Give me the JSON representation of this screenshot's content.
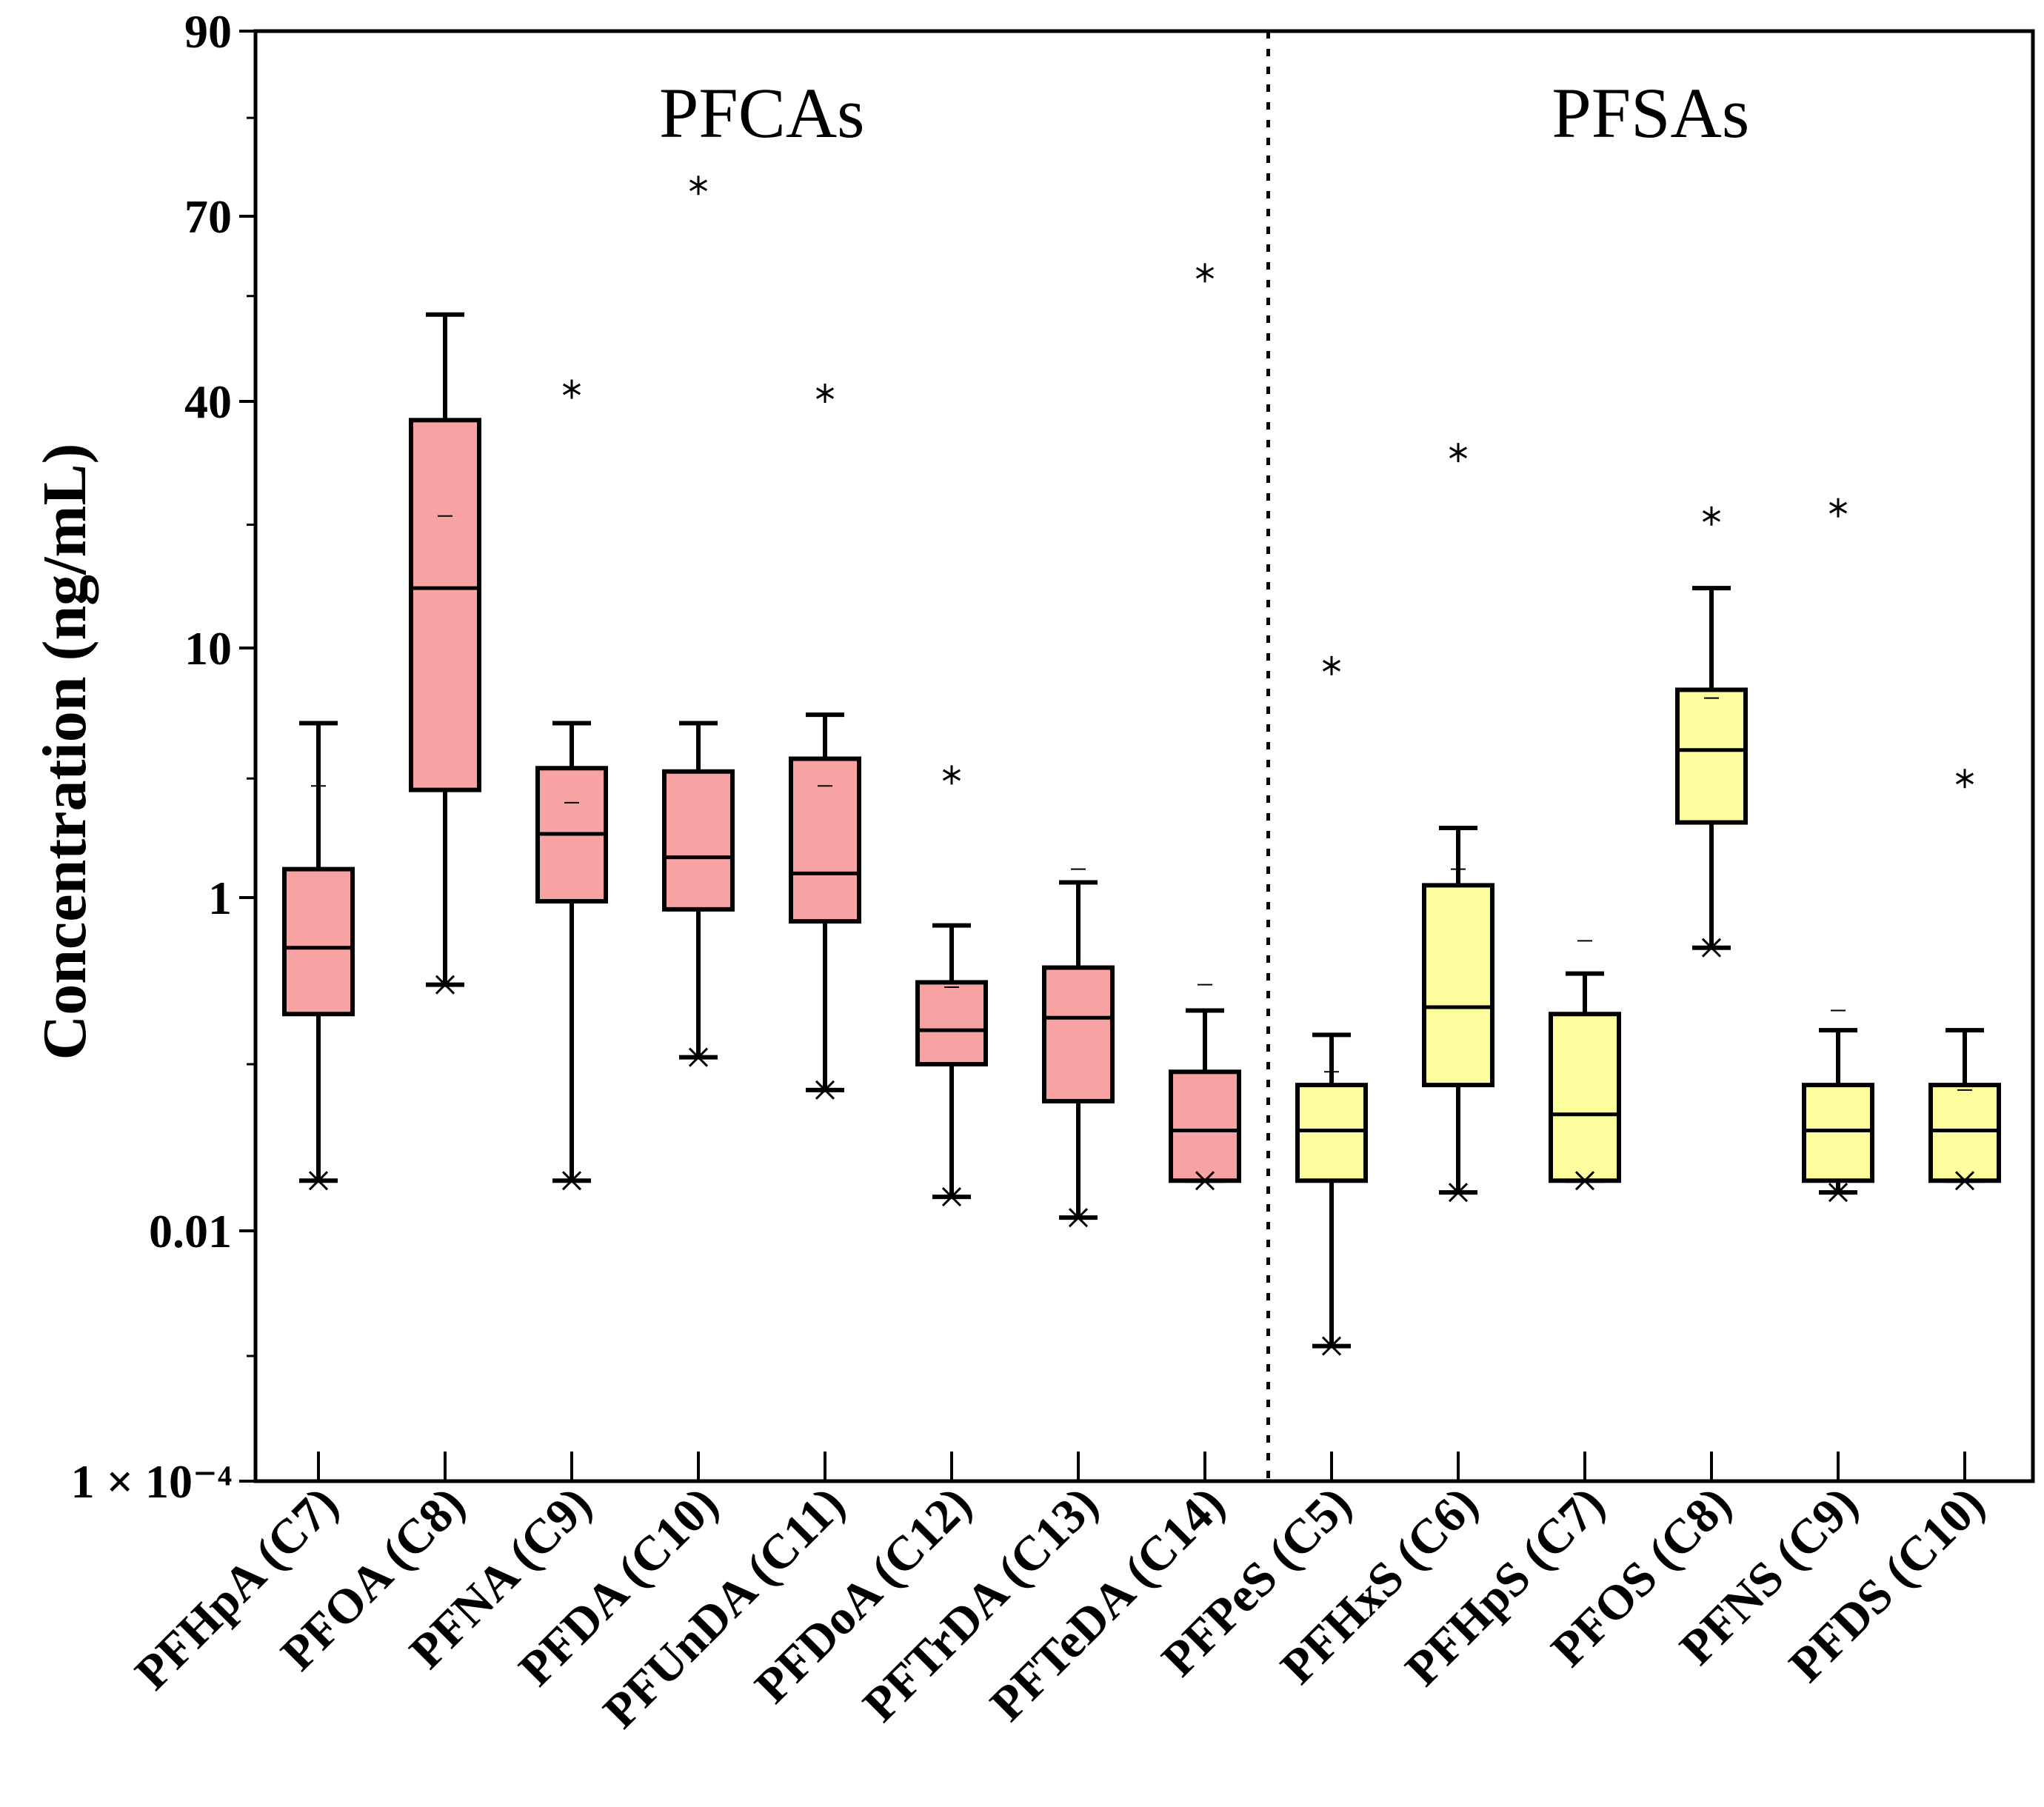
{
  "chart_data": {
    "type": "box",
    "title": "",
    "xlabel": "",
    "ylabel": "Concentration (ng/mL)",
    "yscale": "log",
    "ylim": [
      0.0001,
      90
    ],
    "yticks": [
      {
        "value": 0.0001,
        "label": "1 × 10⁻⁴"
      },
      {
        "value": 0.01,
        "label": "0.01"
      },
      {
        "value": 1,
        "label": "1"
      },
      {
        "value": 10,
        "label": "10"
      },
      {
        "value": 40,
        "label": "40"
      },
      {
        "value": 70,
        "label": "70"
      },
      {
        "value": 90,
        "label": "90"
      }
    ],
    "groups": [
      {
        "label": "PFCAs",
        "color": "#f8a3a3"
      },
      {
        "label": "PFSAs",
        "color": "#fdfd9e"
      }
    ],
    "categories": [
      {
        "label": "PFHpA (C7)",
        "group": 0,
        "whisker_low": 0.02,
        "q1": 0.2,
        "median": 0.5,
        "q3": 1.3,
        "whisker_high": 5.0,
        "mean": 2.8,
        "min_marker": 0.02,
        "max_marker": null,
        "outliers": []
      },
      {
        "label": "PFOA (C8)",
        "group": 0,
        "whisker_low": 0.3,
        "q1": 2.7,
        "median": 14,
        "q3": 36,
        "whisker_high": 52,
        "mean": 21,
        "min_marker": 0.3,
        "max_marker": null,
        "outliers": []
      },
      {
        "label": "PFNA (C9)",
        "group": 0,
        "whisker_low": 0.02,
        "q1": 0.95,
        "median": 1.8,
        "q3": 3.3,
        "whisker_high": 5.0,
        "mean": 2.4,
        "min_marker": 0.02,
        "max_marker": null,
        "outliers": [
          41.5
        ]
      },
      {
        "label": "PFDA (C10)",
        "group": 0,
        "whisker_low": 0.11,
        "q1": 0.85,
        "median": 1.45,
        "q3": 3.2,
        "whisker_high": 5.0,
        "mean": null,
        "min_marker": 0.11,
        "max_marker": null,
        "outliers": [
          73
        ]
      },
      {
        "label": "PFUnDA (C11)",
        "group": 0,
        "whisker_low": 0.07,
        "q1": 0.72,
        "median": 1.25,
        "q3": 3.6,
        "whisker_high": 5.4,
        "mean": 2.8,
        "min_marker": 0.07,
        "max_marker": null,
        "outliers": [
          41
        ]
      },
      {
        "label": "PFDoA (C12)",
        "group": 0,
        "whisker_low": 0.016,
        "q1": 0.1,
        "median": 0.16,
        "q3": 0.31,
        "whisker_high": 0.68,
        "mean": 0.29,
        "min_marker": 0.016,
        "max_marker": null,
        "outliers": [
          3.1
        ]
      },
      {
        "label": "PFTrDA (C13)",
        "group": 0,
        "whisker_low": 0.012,
        "q1": 0.06,
        "median": 0.19,
        "q3": 0.38,
        "whisker_high": 1.15,
        "mean": 1.3,
        "min_marker": 0.012,
        "max_marker": null,
        "outliers": []
      },
      {
        "label": "PFTeDA (C14)",
        "group": 0,
        "whisker_low": 0.02,
        "q1": 0.02,
        "median": 0.04,
        "q3": 0.09,
        "whisker_high": 0.21,
        "mean": 0.3,
        "min_marker": 0.02,
        "max_marker": null,
        "outliers": [
          59
        ]
      },
      {
        "label": "PFPeS (C5)",
        "group": 1,
        "whisker_low": 0.0012,
        "q1": 0.02,
        "median": 0.04,
        "q3": 0.075,
        "whisker_high": 0.15,
        "mean": 0.09,
        "min_marker": 0.0012,
        "max_marker": null,
        "outliers": [
          8.5
        ]
      },
      {
        "label": "PFHxS (C6)",
        "group": 1,
        "whisker_low": 0.017,
        "q1": 0.075,
        "median": 0.22,
        "q3": 1.12,
        "whisker_high": 1.9,
        "mean": 1.3,
        "min_marker": 0.017,
        "max_marker": null,
        "outliers": [
          30
        ]
      },
      {
        "label": "PFHpS (C7)",
        "group": 1,
        "whisker_low": 0.02,
        "q1": 0.02,
        "median": 0.05,
        "q3": 0.2,
        "whisker_high": 0.35,
        "mean": 0.55,
        "min_marker": 0.02,
        "max_marker": null,
        "outliers": []
      },
      {
        "label": "PFOS (C8)",
        "group": 1,
        "whisker_low": 0.5,
        "q1": 2.0,
        "median": 3.9,
        "q3": 6.8,
        "whisker_high": 14,
        "mean": 6.3,
        "min_marker": 0.5,
        "max_marker": null,
        "outliers": [
          21
        ]
      },
      {
        "label": "PFNS (C9)",
        "group": 1,
        "whisker_low": 0.017,
        "q1": 0.02,
        "median": 0.04,
        "q3": 0.075,
        "whisker_high": 0.16,
        "mean": 0.21,
        "min_marker": 0.017,
        "max_marker": null,
        "outliers": [
          22
        ]
      },
      {
        "label": "PFDS (C10)",
        "group": 1,
        "whisker_low": 0.02,
        "q1": 0.02,
        "median": 0.04,
        "q3": 0.075,
        "whisker_high": 0.16,
        "mean": 0.07,
        "min_marker": 0.02,
        "max_marker": null,
        "outliers": [
          3.0
        ]
      }
    ]
  }
}
